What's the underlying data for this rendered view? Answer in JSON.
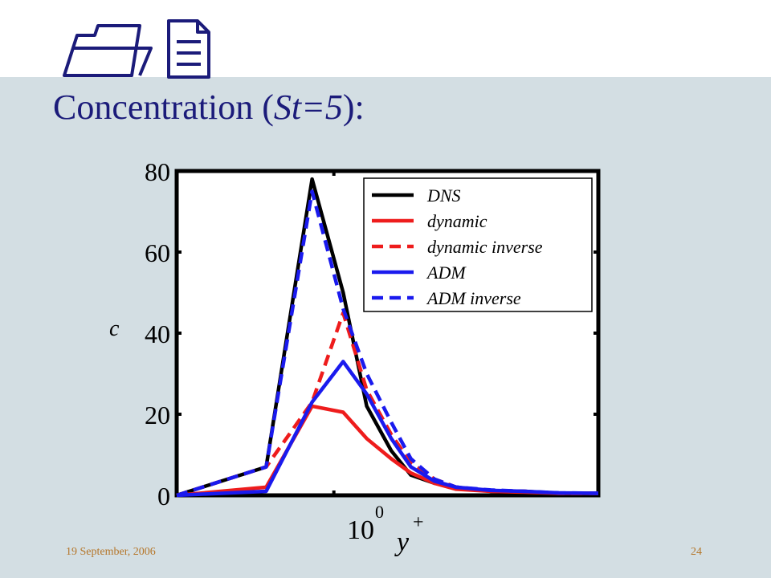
{
  "slide": {
    "title_prefix": "Concentration (",
    "title_italic": "St=5",
    "title_suffix": "):",
    "footer_date": "19 September, 2006",
    "page_number": "24"
  },
  "colors": {
    "title": "#1b1b7a",
    "footer": "#b5762a",
    "dns": "#000000",
    "dynamic": "#ee1c1c",
    "adm": "#1a1aee",
    "background": "#d3dee3"
  },
  "chart_data": {
    "type": "line",
    "title": "",
    "ylabel": "c",
    "xlabel": "y+",
    "xscale": "log",
    "x_tick_label": "10",
    "x_tick_exponent": "0",
    "ylim": [
      0,
      80
    ],
    "yticks": [
      "0",
      "20",
      "40",
      "60",
      "80"
    ],
    "grid": false,
    "legend_position": "top-right",
    "x": [
      0.2,
      0.5,
      0.8,
      1.1,
      1.4,
      1.8,
      2.2,
      2.8,
      3.5,
      5,
      7,
      10,
      15
    ],
    "series": [
      {
        "name": "DNS",
        "style": "solid",
        "color": "#000000",
        "values": [
          0,
          7,
          78,
          50,
          22,
          11,
          5,
          3,
          2,
          1,
          1,
          0.5,
          0.5
        ]
      },
      {
        "name": "dynamic",
        "style": "solid",
        "color": "#ee1c1c",
        "values": [
          0,
          2,
          22,
          20.5,
          14,
          9,
          5.5,
          3,
          1.5,
          1,
          0.8,
          0.5,
          0.5
        ]
      },
      {
        "name": "dynamic inverse",
        "style": "dashed",
        "color": "#ee1c1c",
        "values": [
          0,
          7,
          23,
          45,
          26,
          15,
          8,
          4,
          2,
          1.2,
          1,
          0.5,
          0.5
        ]
      },
      {
        "name": "ADM",
        "style": "solid",
        "color": "#1a1aee",
        "values": [
          0,
          1,
          23,
          33,
          25,
          14,
          7,
          3.5,
          2,
          1.2,
          1,
          0.6,
          0.5
        ]
      },
      {
        "name": "ADM inverse",
        "style": "dashed",
        "color": "#1a1aee",
        "values": [
          0,
          7,
          75,
          46,
          30,
          18,
          9,
          4,
          2,
          1.3,
          1,
          0.6,
          0.5
        ]
      }
    ]
  }
}
